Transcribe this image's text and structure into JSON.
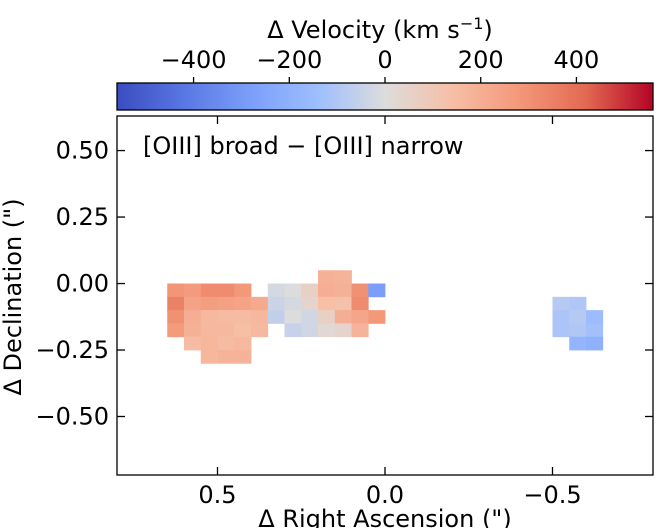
{
  "chart_data": {
    "type": "heatmap",
    "title": "[OIII] broad − [OIII] narrow",
    "xlabel": "Δ Right Ascension (\")",
    "ylabel": "Δ Declination (\")",
    "xlim": [
      0.8,
      -0.8
    ],
    "ylim": [
      -0.72,
      0.63
    ],
    "xticks": [
      0.5,
      0.0,
      -0.5
    ],
    "xtick_labels": [
      "0.5",
      "0.0",
      "−0.5"
    ],
    "yticks": [
      0.5,
      0.25,
      0.0,
      -0.25,
      -0.5
    ],
    "ytick_labels": [
      "0.50",
      "0.25",
      "0.00",
      "−0.25",
      "−0.50"
    ],
    "colorbar": {
      "label": "Δ Velocity (km s",
      "label_exp": "−1",
      "label_close": ")",
      "colormap": "coolwarm",
      "vmin": -560,
      "vmax": 560,
      "ticks": [
        -400,
        -200,
        0,
        200,
        400
      ],
      "tick_labels": [
        "−400",
        "−200",
        "0",
        "200",
        "400"
      ]
    },
    "pixel_size": 0.05,
    "pixels": [
      {
        "ra": 0.625,
        "dec": -0.025,
        "v": 290
      },
      {
        "ra": 0.575,
        "dec": -0.025,
        "v": 270
      },
      {
        "ra": 0.525,
        "dec": -0.025,
        "v": 320
      },
      {
        "ra": 0.475,
        "dec": -0.025,
        "v": 320
      },
      {
        "ra": 0.425,
        "dec": -0.025,
        "v": 280
      },
      {
        "ra": 0.625,
        "dec": -0.075,
        "v": 350
      },
      {
        "ra": 0.575,
        "dec": -0.075,
        "v": 240
      },
      {
        "ra": 0.525,
        "dec": -0.075,
        "v": 260
      },
      {
        "ra": 0.475,
        "dec": -0.075,
        "v": 250
      },
      {
        "ra": 0.425,
        "dec": -0.075,
        "v": 240
      },
      {
        "ra": 0.375,
        "dec": -0.075,
        "v": 220
      },
      {
        "ra": 0.625,
        "dec": -0.125,
        "v": 300
      },
      {
        "ra": 0.575,
        "dec": -0.125,
        "v": 200
      },
      {
        "ra": 0.525,
        "dec": -0.125,
        "v": 160
      },
      {
        "ra": 0.475,
        "dec": -0.125,
        "v": 150
      },
      {
        "ra": 0.425,
        "dec": -0.125,
        "v": 150
      },
      {
        "ra": 0.375,
        "dec": -0.125,
        "v": 170
      },
      {
        "ra": 0.625,
        "dec": -0.175,
        "v": 270
      },
      {
        "ra": 0.575,
        "dec": -0.175,
        "v": 190
      },
      {
        "ra": 0.525,
        "dec": -0.175,
        "v": 160
      },
      {
        "ra": 0.475,
        "dec": -0.175,
        "v": 160
      },
      {
        "ra": 0.425,
        "dec": -0.175,
        "v": 140
      },
      {
        "ra": 0.375,
        "dec": -0.175,
        "v": 160
      },
      {
        "ra": 0.575,
        "dec": -0.225,
        "v": 150
      },
      {
        "ra": 0.525,
        "dec": -0.225,
        "v": 170
      },
      {
        "ra": 0.475,
        "dec": -0.225,
        "v": 150
      },
      {
        "ra": 0.425,
        "dec": -0.225,
        "v": 160
      },
      {
        "ra": 0.525,
        "dec": -0.275,
        "v": 170
      },
      {
        "ra": 0.475,
        "dec": -0.275,
        "v": 180
      },
      {
        "ra": 0.425,
        "dec": -0.275,
        "v": 180
      },
      {
        "ra": 0.175,
        "dec": 0.025,
        "v": 190
      },
      {
        "ra": 0.125,
        "dec": 0.025,
        "v": 180
      },
      {
        "ra": 0.325,
        "dec": -0.025,
        "v": -20
      },
      {
        "ra": 0.275,
        "dec": -0.025,
        "v": 0
      },
      {
        "ra": 0.225,
        "dec": -0.025,
        "v": 60
      },
      {
        "ra": 0.175,
        "dec": -0.025,
        "v": 200
      },
      {
        "ra": 0.125,
        "dec": -0.025,
        "v": 190
      },
      {
        "ra": 0.075,
        "dec": -0.025,
        "v": 300
      },
      {
        "ra": 0.025,
        "dec": -0.025,
        "v": -280
      },
      {
        "ra": 0.325,
        "dec": -0.075,
        "v": -40
      },
      {
        "ra": 0.275,
        "dec": -0.075,
        "v": -20
      },
      {
        "ra": 0.225,
        "dec": -0.075,
        "v": 40
      },
      {
        "ra": 0.175,
        "dec": -0.075,
        "v": 140
      },
      {
        "ra": 0.125,
        "dec": -0.075,
        "v": 130
      },
      {
        "ra": 0.075,
        "dec": -0.075,
        "v": 320
      },
      {
        "ra": 0.325,
        "dec": -0.125,
        "v": -60
      },
      {
        "ra": 0.275,
        "dec": -0.125,
        "v": 0
      },
      {
        "ra": 0.225,
        "dec": -0.125,
        "v": -30
      },
      {
        "ra": 0.175,
        "dec": -0.125,
        "v": 60
      },
      {
        "ra": 0.125,
        "dec": -0.125,
        "v": 200
      },
      {
        "ra": 0.075,
        "dec": -0.125,
        "v": 230
      },
      {
        "ra": 0.025,
        "dec": -0.125,
        "v": 280
      },
      {
        "ra": 0.275,
        "dec": -0.175,
        "v": -50
      },
      {
        "ra": 0.225,
        "dec": -0.175,
        "v": -30
      },
      {
        "ra": 0.175,
        "dec": -0.175,
        "v": 20
      },
      {
        "ra": 0.125,
        "dec": -0.175,
        "v": 40
      },
      {
        "ra": 0.075,
        "dec": -0.175,
        "v": 180
      },
      {
        "ra": -0.525,
        "dec": -0.075,
        "v": -90
      },
      {
        "ra": -0.575,
        "dec": -0.075,
        "v": -100
      },
      {
        "ra": -0.525,
        "dec": -0.125,
        "v": -110
      },
      {
        "ra": -0.575,
        "dec": -0.125,
        "v": -90
      },
      {
        "ra": -0.625,
        "dec": -0.125,
        "v": -150
      },
      {
        "ra": -0.525,
        "dec": -0.175,
        "v": -110
      },
      {
        "ra": -0.575,
        "dec": -0.175,
        "v": -100
      },
      {
        "ra": -0.625,
        "dec": -0.175,
        "v": -130
      },
      {
        "ra": -0.575,
        "dec": -0.225,
        "v": -180
      },
      {
        "ra": -0.625,
        "dec": -0.225,
        "v": -200
      }
    ]
  }
}
